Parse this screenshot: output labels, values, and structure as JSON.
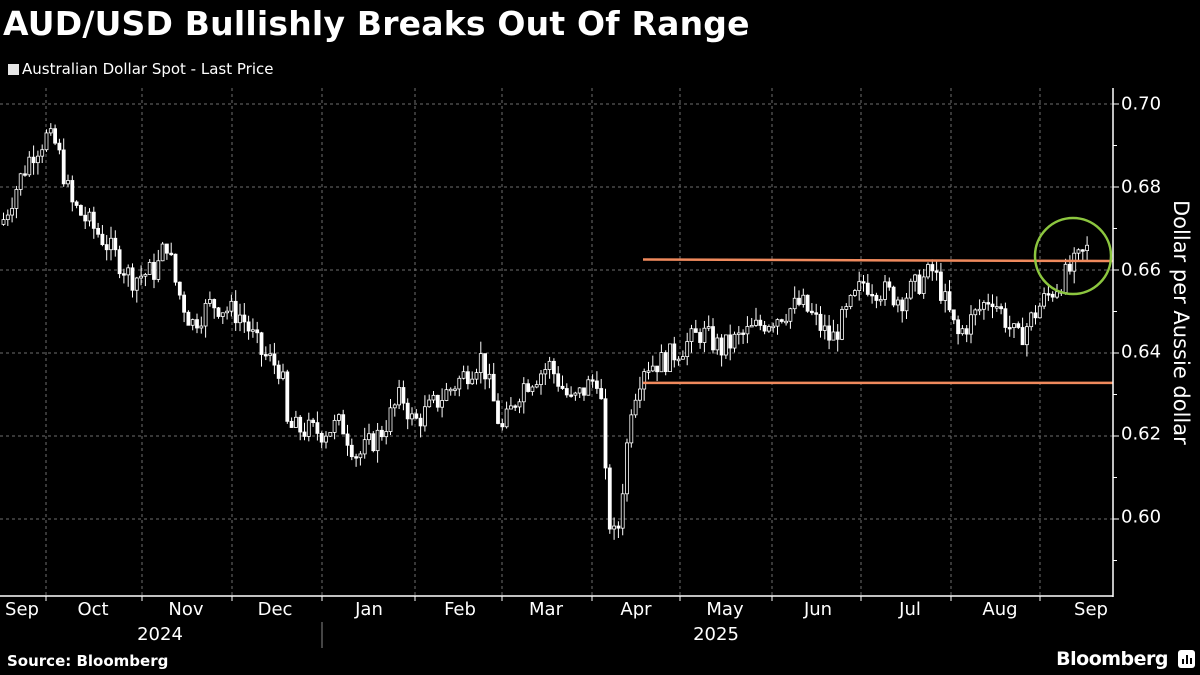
{
  "header": {
    "title": "AUD/USD Bullishly Breaks Out Of Range",
    "legend_label": "Australian Dollar Spot - Last Price"
  },
  "footer": {
    "source": "Source: Bloomberg",
    "brand": "Bloomberg"
  },
  "colors": {
    "background": "#000000",
    "candles": "#ffffff",
    "grid": "#6e6e6e",
    "range_lines": "#f08a5d",
    "breakout_circle": "#8cc63f"
  },
  "chart_data": {
    "type": "candlestick",
    "title": "AUD/USD Bullishly Breaks Out Of Range",
    "series_name": "Australian Dollar Spot - Last Price",
    "ylabel": "Dollar per Aussie dollar",
    "xlabel": "",
    "ylim": [
      0.58,
      0.705
    ],
    "y_ticks": [
      "0.70",
      "0.68",
      "0.66",
      "0.64",
      "0.62",
      "0.60"
    ],
    "x_ticks": [
      "Sep",
      "Oct",
      "Nov",
      "Dec",
      "Jan",
      "Feb",
      "Mar",
      "Apr",
      "May",
      "Jun",
      "Jul",
      "Aug",
      "Sep"
    ],
    "x_years": [
      {
        "label": "2024",
        "under": "Sep–Dec"
      },
      {
        "label": "2025",
        "under": "Jan–Sep"
      }
    ],
    "grid": true,
    "legend_position": "top-left",
    "annotations": [
      {
        "type": "hline",
        "label": "range top",
        "value": 0.6624,
        "from": "Apr 2025",
        "to": "Sep 2025",
        "color": "#f08a5d"
      },
      {
        "type": "hline",
        "label": "range bottom",
        "value": 0.6328,
        "from": "Apr 2025",
        "to": "Sep 2025",
        "color": "#f08a5d"
      },
      {
        "type": "circle",
        "label": "breakout",
        "center_value": 0.663,
        "at": "late Aug / early Sep 2025",
        "color": "#8cc63f"
      }
    ],
    "key_levels": {
      "start_sep_2024": 0.671,
      "high_late_sep_2024": 0.694,
      "low_jan_2025": 0.613,
      "low_apr_2025": 0.591,
      "last_sep_2025": 0.665
    },
    "path": [
      [
        0,
        0.671
      ],
      [
        15,
        0.68
      ],
      [
        30,
        0.688
      ],
      [
        45,
        0.692
      ],
      [
        55,
        0.69
      ],
      [
        70,
        0.676
      ],
      [
        100,
        0.668
      ],
      [
        130,
        0.658
      ],
      [
        155,
        0.66
      ],
      [
        165,
        0.667
      ],
      [
        175,
        0.656
      ],
      [
        190,
        0.647
      ],
      [
        210,
        0.652
      ],
      [
        240,
        0.649
      ],
      [
        260,
        0.64
      ],
      [
        280,
        0.636
      ],
      [
        286,
        0.622
      ],
      [
        320,
        0.621
      ],
      [
        340,
        0.623
      ],
      [
        356,
        0.615
      ],
      [
        380,
        0.621
      ],
      [
        400,
        0.63
      ],
      [
        412,
        0.623
      ],
      [
        430,
        0.627
      ],
      [
        460,
        0.634
      ],
      [
        480,
        0.639
      ],
      [
        500,
        0.621
      ],
      [
        520,
        0.632
      ],
      [
        548,
        0.637
      ],
      [
        570,
        0.628
      ],
      [
        598,
        0.635
      ],
      [
        606,
        0.601
      ],
      [
        615,
        0.594
      ],
      [
        630,
        0.628
      ],
      [
        642,
        0.637
      ],
      [
        662,
        0.638
      ],
      [
        700,
        0.645
      ],
      [
        720,
        0.641
      ],
      [
        760,
        0.647
      ],
      [
        800,
        0.652
      ],
      [
        830,
        0.643
      ],
      [
        862,
        0.657
      ],
      [
        900,
        0.653
      ],
      [
        932,
        0.66
      ],
      [
        956,
        0.644
      ],
      [
        990,
        0.654
      ],
      [
        1016,
        0.643
      ],
      [
        1040,
        0.652
      ],
      [
        1062,
        0.658
      ],
      [
        1086,
        0.665
      ]
    ]
  }
}
